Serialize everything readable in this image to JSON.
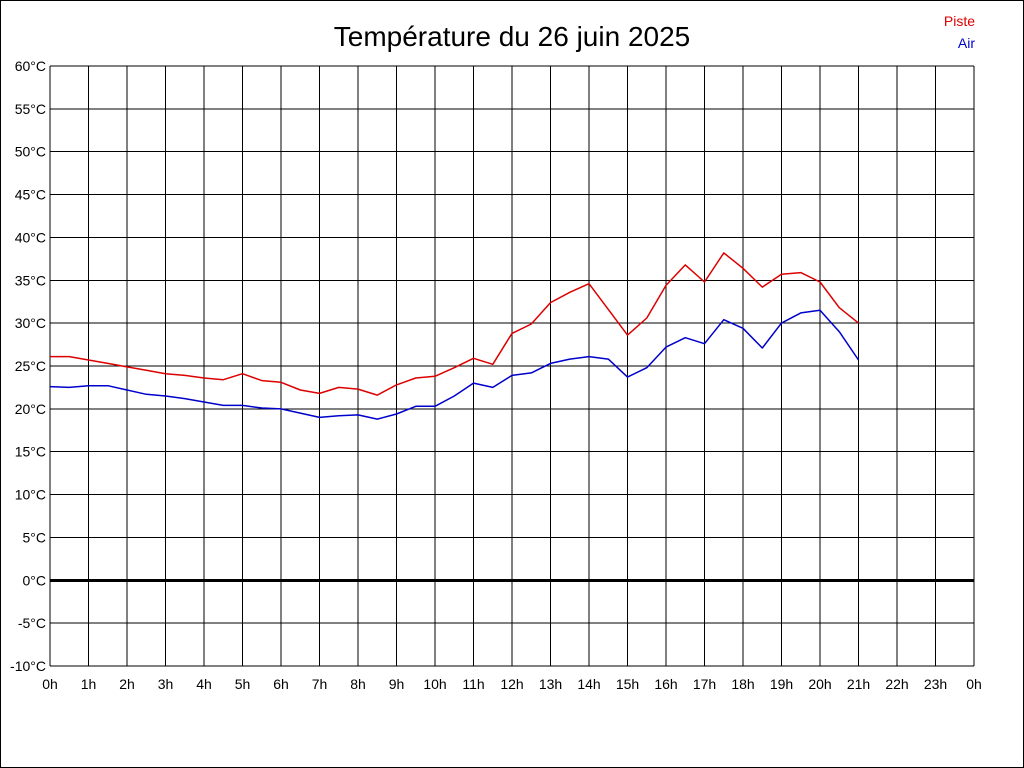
{
  "chart_data": {
    "type": "line",
    "title": "Température du 26 juin 2025",
    "xlabel": "",
    "ylabel": "",
    "x_ticks": [
      "0h",
      "1h",
      "2h",
      "3h",
      "4h",
      "5h",
      "6h",
      "7h",
      "8h",
      "9h",
      "10h",
      "11h",
      "12h",
      "13h",
      "14h",
      "15h",
      "16h",
      "17h",
      "18h",
      "19h",
      "20h",
      "21h",
      "22h",
      "23h",
      "0h"
    ],
    "y_ticks": [
      "60°C",
      "55°C",
      "50°C",
      "45°C",
      "40°C",
      "35°C",
      "30°C",
      "25°C",
      "20°C",
      "15°C",
      "10°C",
      "5°C",
      "0°C",
      "-5°C",
      "-10°C"
    ],
    "xlim": [
      0,
      24
    ],
    "ylim": [
      -10,
      60
    ],
    "grid": true,
    "legend_position": "top-right",
    "x": [
      0,
      0.5,
      1,
      1.5,
      2,
      2.5,
      3,
      3.5,
      4,
      4.5,
      5,
      5.5,
      6,
      6.5,
      7,
      7.5,
      8,
      8.5,
      9,
      9.5,
      10,
      10.5,
      11,
      11.5,
      12,
      12.5,
      13,
      13.5,
      14,
      14.5,
      15,
      15.5,
      16,
      16.5,
      17,
      17.5,
      18,
      18.5,
      19,
      19.5,
      20,
      20.5,
      21
    ],
    "series": [
      {
        "name": "Piste",
        "color": "#dd0000",
        "values": [
          26.1,
          26.1,
          25.7,
          25.3,
          24.9,
          24.5,
          24.1,
          23.9,
          23.6,
          23.4,
          24.1,
          23.3,
          23.1,
          22.2,
          21.8,
          22.5,
          22.3,
          21.6,
          22.8,
          23.6,
          23.8,
          24.8,
          25.9,
          25.2,
          28.8,
          29.9,
          32.4,
          33.6,
          34.6,
          31.6,
          28.6,
          30.6,
          34.4,
          36.8,
          34.8,
          38.2,
          36.4,
          34.2,
          35.7,
          35.9,
          34.8,
          31.8,
          30.0
        ]
      },
      {
        "name": "Air",
        "color": "#0000cc",
        "values": [
          22.6,
          22.5,
          22.7,
          22.7,
          22.2,
          21.7,
          21.5,
          21.2,
          20.8,
          20.4,
          20.4,
          20.1,
          20.0,
          19.5,
          19.0,
          19.2,
          19.3,
          18.8,
          19.4,
          20.3,
          20.3,
          21.5,
          23.0,
          22.5,
          23.9,
          24.2,
          25.3,
          25.8,
          26.1,
          25.8,
          23.7,
          24.8,
          27.2,
          28.3,
          27.6,
          30.4,
          29.4,
          27.1,
          30.0,
          31.2,
          31.5,
          29.0,
          25.7
        ]
      }
    ]
  }
}
